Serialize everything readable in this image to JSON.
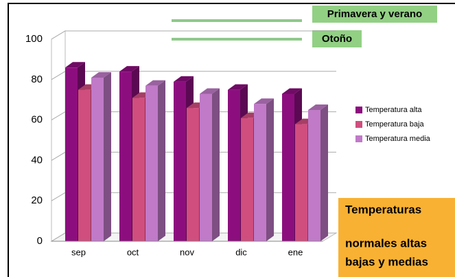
{
  "chart_data": {
    "type": "bar3d",
    "categories": [
      "sep",
      "oct",
      "nov",
      "dic",
      "ene"
    ],
    "series": [
      {
        "name": "Temperatura alta",
        "color": "#8c0e7e",
        "values": [
          88,
          86,
          81,
          77,
          75
        ]
      },
      {
        "name": "Temperatura baja",
        "color": "#d04e7e",
        "values": [
          77,
          73,
          68,
          63,
          60
        ]
      },
      {
        "name": "Temperatura media",
        "color": "#c07ac8",
        "values": [
          83,
          79,
          75,
          70,
          67
        ]
      }
    ],
    "ylim": [
      0,
      100
    ],
    "yticks": [
      0,
      20,
      40,
      60,
      80,
      100
    ],
    "grid": true,
    "legend": "right",
    "annotations": [
      "Primavera y verano",
      "Otoño"
    ],
    "note_lines": [
      "Temperaturas",
      "normales altas",
      "bajas y medias"
    ]
  }
}
